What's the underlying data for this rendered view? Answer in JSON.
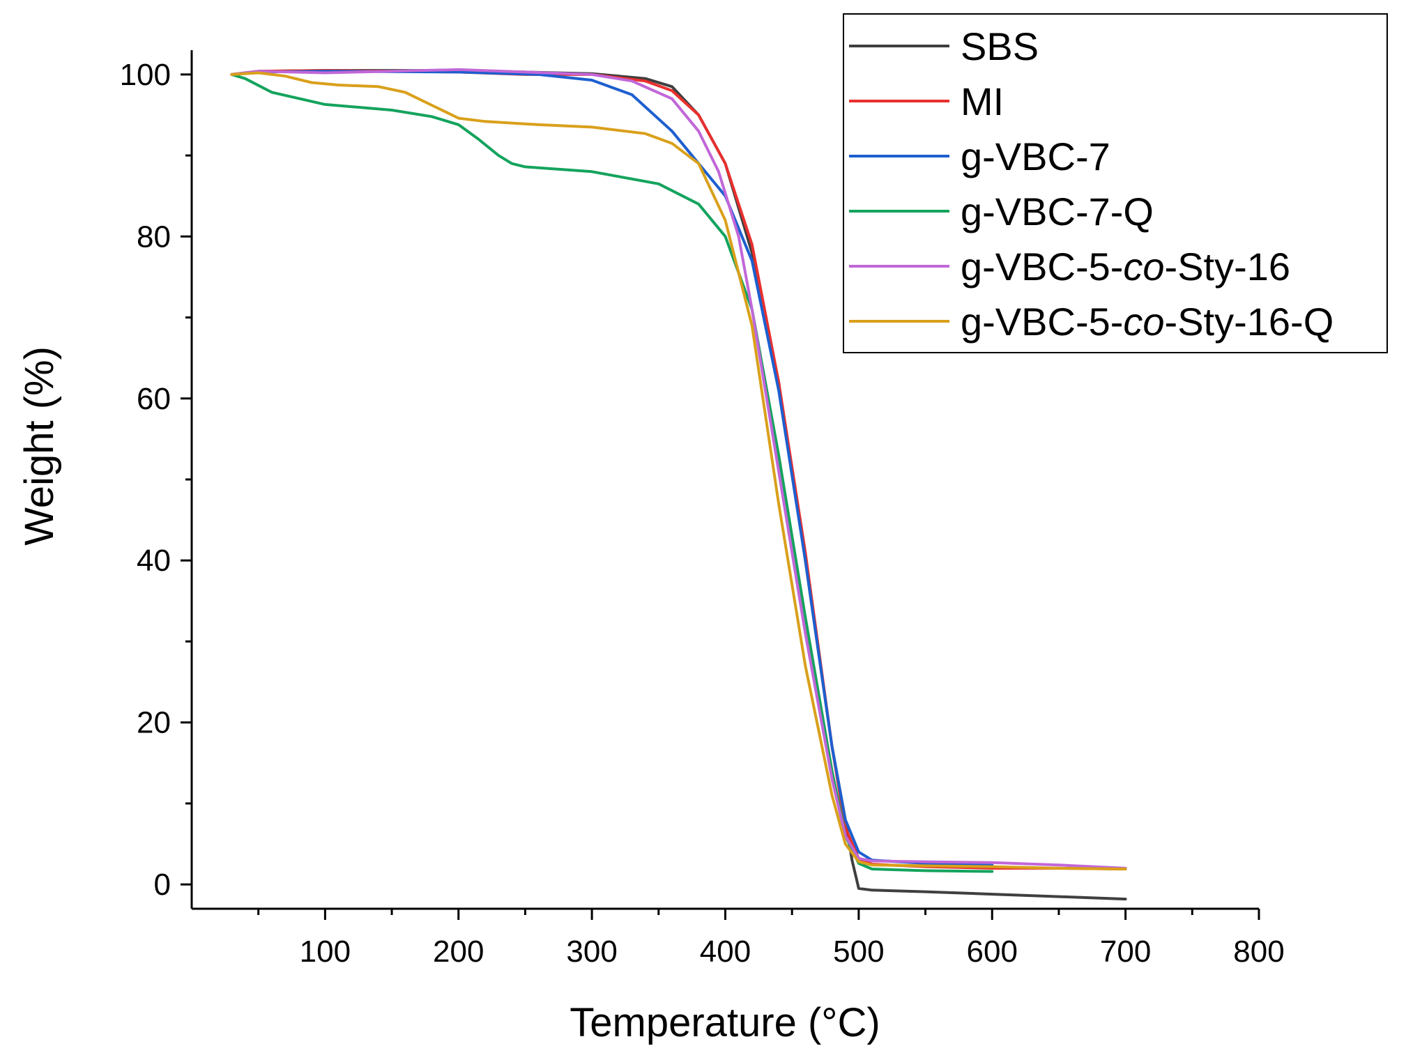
{
  "chart_data": {
    "type": "line",
    "title": "",
    "xlabel": "Temperature (°C)",
    "ylabel": "Weight (%)",
    "xlim": [
      0,
      800
    ],
    "ylim": [
      -3,
      103
    ],
    "xticks": [
      100,
      200,
      300,
      400,
      500,
      600,
      700,
      800
    ],
    "xtick_labels": [
      "100",
      "200",
      "300",
      "400",
      "500",
      "600",
      "700",
      "800"
    ],
    "yticks": [
      0,
      20,
      40,
      60,
      80,
      100
    ],
    "ytick_labels": [
      "0",
      "20",
      "40",
      "60",
      "80",
      "100"
    ],
    "grid": false,
    "legend_position": "top-right",
    "series": [
      {
        "name": "SBS",
        "legend_parts": [
          {
            "text": "SBS",
            "italic": false
          }
        ],
        "color": "#3f3f3f",
        "x": [
          30,
          50,
          100,
          200,
          300,
          340,
          360,
          380,
          400,
          420,
          440,
          460,
          480,
          490,
          495,
          500,
          510,
          550,
          600,
          650,
          700
        ],
        "y": [
          100,
          100.4,
          100.5,
          100.5,
          100.1,
          99.5,
          98.5,
          95,
          89,
          78,
          62,
          40,
          17,
          8,
          3,
          -0.5,
          -0.7,
          -0.9,
          -1.2,
          -1.5,
          -1.8
        ]
      },
      {
        "name": "MI",
        "legend_parts": [
          {
            "text": "MI",
            "italic": false
          }
        ],
        "color": "#e8302e",
        "x": [
          30,
          50,
          100,
          200,
          250,
          300,
          340,
          360,
          380,
          400,
          420,
          440,
          460,
          480,
          490,
          500,
          510,
          550,
          600,
          650,
          700
        ],
        "y": [
          100,
          100.4,
          100.5,
          100.3,
          100,
          100,
          99.2,
          98,
          95,
          89,
          79,
          62,
          41,
          17,
          7,
          3.2,
          2.5,
          2.2,
          2.0,
          2.0,
          1.9
        ]
      },
      {
        "name": "g-VBC-7",
        "legend_parts": [
          {
            "text": "g-VBC-7",
            "italic": false
          }
        ],
        "color": "#1d5fcf",
        "x": [
          30,
          50,
          100,
          200,
          260,
          300,
          330,
          360,
          380,
          400,
          420,
          440,
          460,
          480,
          490,
          500,
          510,
          550,
          600
        ],
        "y": [
          100,
          100.3,
          100.4,
          100.3,
          100,
          99.3,
          97.5,
          93,
          89,
          85,
          77,
          61,
          40,
          17,
          8,
          4,
          3.0,
          2.6,
          2.4
        ]
      },
      {
        "name": "g-VBC-7-Q",
        "legend_parts": [
          {
            "text": "g-VBC-7-Q",
            "italic": false
          }
        ],
        "color": "#14a35d",
        "x": [
          30,
          40,
          60,
          100,
          150,
          180,
          200,
          215,
          230,
          240,
          250,
          300,
          350,
          380,
          400,
          420,
          440,
          460,
          480,
          490,
          500,
          510,
          550,
          600
        ],
        "y": [
          100,
          99.5,
          97.8,
          96.3,
          95.6,
          94.8,
          93.8,
          92,
          90,
          89,
          88.6,
          88,
          86.5,
          84,
          80,
          71,
          53,
          33,
          14,
          6,
          2.6,
          1.9,
          1.7,
          1.6
        ]
      },
      {
        "name": "g-VBC-5-co-Sty-16",
        "legend_parts": [
          {
            "text": "g-VBC-5-",
            "italic": false
          },
          {
            "text": "co",
            "italic": true
          },
          {
            "text": "-Sty-16",
            "italic": false
          }
        ],
        "color": "#c167d8",
        "x": [
          30,
          50,
          100,
          200,
          250,
          300,
          330,
          360,
          380,
          395,
          410,
          420,
          440,
          460,
          480,
          490,
          500,
          510,
          550,
          600,
          650,
          700
        ],
        "y": [
          100,
          100.4,
          100.2,
          100.6,
          100.3,
          100,
          99.2,
          97,
          93,
          88,
          80,
          71,
          51,
          31,
          13,
          6,
          3.2,
          2.9,
          2.8,
          2.7,
          2.4,
          2.0
        ]
      },
      {
        "name": "g-VBC-5-co-Sty-16-Q",
        "legend_parts": [
          {
            "text": "g-VBC-5-",
            "italic": false
          },
          {
            "text": "co",
            "italic": true
          },
          {
            "text": "-Sty-16-Q",
            "italic": false
          }
        ],
        "color": "#d9a01b",
        "x": [
          30,
          50,
          70,
          90,
          110,
          140,
          160,
          180,
          200,
          220,
          260,
          300,
          340,
          360,
          380,
          400,
          420,
          440,
          460,
          480,
          490,
          500,
          510,
          550,
          600,
          650,
          700
        ],
        "y": [
          100,
          100.2,
          99.8,
          99,
          98.7,
          98.5,
          97.8,
          96.2,
          94.6,
          94.2,
          93.8,
          93.5,
          92.7,
          91.5,
          89,
          82,
          69,
          47,
          27,
          11,
          5,
          2.8,
          2.4,
          2.3,
          2.2,
          2.0,
          1.9
        ]
      }
    ]
  }
}
